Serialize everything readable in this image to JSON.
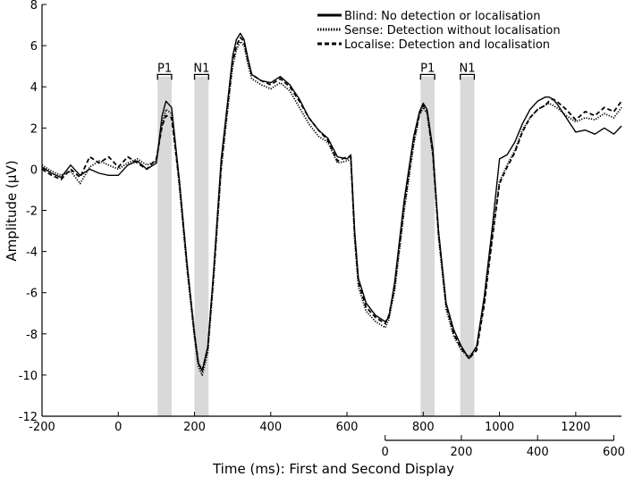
{
  "chart_data": {
    "type": "line",
    "xlabel": "Time (ms): First and Second Display",
    "ylabel": "Amplitude  (μV)",
    "xlim": [
      -200,
      1320
    ],
    "ylim": [
      -12,
      8
    ],
    "x_ticks": [
      -200,
      0,
      200,
      400,
      600,
      800,
      1000,
      1200
    ],
    "y_ticks": [
      8,
      6,
      4,
      2,
      0,
      -2,
      -4,
      -6,
      -8,
      -10,
      -12
    ],
    "second_axis": {
      "offset": 700,
      "ticks": [
        0,
        200,
        400,
        600
      ]
    },
    "shaded_regions": [
      {
        "label": "P1",
        "start": 103,
        "end": 140
      },
      {
        "label": "N1",
        "start": 200,
        "end": 237
      },
      {
        "label": "P1",
        "start": 793,
        "end": 830
      },
      {
        "label": "N1",
        "start": 897,
        "end": 934
      }
    ],
    "legend_position": "top-right",
    "series": [
      {
        "name": "Blind: No detection or localisation",
        "style": "solid",
        "x": [
          -200,
          -175,
          -150,
          -125,
          -100,
          -75,
          -50,
          -25,
          0,
          25,
          50,
          75,
          100,
          115,
          125,
          140,
          160,
          180,
          200,
          210,
          220,
          235,
          250,
          270,
          290,
          300,
          310,
          320,
          330,
          340,
          350,
          375,
          400,
          425,
          450,
          475,
          500,
          525,
          550,
          575,
          600,
          610,
          620,
          630,
          650,
          675,
          700,
          710,
          725,
          750,
          775,
          790,
          800,
          810,
          825,
          840,
          860,
          880,
          900,
          920,
          940,
          960,
          980,
          1000,
          1020,
          1040,
          1060,
          1080,
          1100,
          1120,
          1130,
          1140,
          1150,
          1175,
          1200,
          1225,
          1250,
          1275,
          1300,
          1320
        ],
        "y": [
          0.1,
          -0.2,
          -0.4,
          0.2,
          -0.3,
          0.0,
          -0.2,
          -0.3,
          -0.3,
          0.2,
          0.4,
          0.0,
          0.3,
          2.6,
          3.3,
          3.0,
          -0.5,
          -4.5,
          -8.0,
          -9.4,
          -9.8,
          -8.6,
          -5.0,
          0.5,
          3.8,
          5.5,
          6.3,
          6.6,
          6.3,
          5.4,
          4.6,
          4.3,
          4.2,
          4.5,
          4.1,
          3.4,
          2.5,
          1.9,
          1.5,
          0.6,
          0.5,
          0.7,
          -3.0,
          -5.3,
          -6.5,
          -7.1,
          -7.4,
          -7.2,
          -5.5,
          -1.5,
          1.6,
          2.8,
          3.2,
          2.9,
          1.0,
          -3.0,
          -6.5,
          -7.8,
          -8.6,
          -9.2,
          -8.6,
          -6.2,
          -3.0,
          0.5,
          0.7,
          1.3,
          2.2,
          2.9,
          3.3,
          3.5,
          3.5,
          3.4,
          3.2,
          2.5,
          1.8,
          1.9,
          1.7,
          2.0,
          1.7,
          2.1
        ]
      },
      {
        "name": "Sense: Detection without localisation",
        "style": "dotted",
        "x": [
          -200,
          -175,
          -150,
          -125,
          -100,
          -75,
          -50,
          -25,
          0,
          25,
          50,
          75,
          100,
          115,
          125,
          140,
          160,
          180,
          200,
          210,
          220,
          235,
          250,
          270,
          290,
          300,
          310,
          320,
          330,
          340,
          350,
          375,
          400,
          425,
          450,
          475,
          500,
          525,
          550,
          575,
          600,
          610,
          620,
          630,
          650,
          675,
          700,
          710,
          725,
          750,
          775,
          790,
          800,
          810,
          825,
          840,
          860,
          880,
          900,
          920,
          940,
          960,
          980,
          1000,
          1020,
          1040,
          1060,
          1080,
          1100,
          1120,
          1130,
          1140,
          1150,
          1175,
          1200,
          1225,
          1250,
          1275,
          1300,
          1320
        ],
        "y": [
          0.2,
          -0.1,
          -0.3,
          -0.1,
          -0.7,
          0.1,
          0.4,
          0.2,
          0.0,
          0.3,
          0.5,
          0.2,
          0.4,
          2.2,
          2.9,
          2.7,
          -0.8,
          -4.8,
          -8.2,
          -9.6,
          -10.0,
          -8.9,
          -5.4,
          0.0,
          3.4,
          5.0,
          5.8,
          6.2,
          6.0,
          5.1,
          4.4,
          4.1,
          3.9,
          4.2,
          3.8,
          3.0,
          2.2,
          1.6,
          1.3,
          0.3,
          0.4,
          0.5,
          -3.4,
          -5.7,
          -6.9,
          -7.4,
          -7.7,
          -7.3,
          -5.9,
          -2.0,
          1.2,
          2.6,
          3.0,
          2.7,
          0.7,
          -3.3,
          -6.8,
          -8.1,
          -8.8,
          -9.1,
          -8.7,
          -6.5,
          -3.4,
          -0.6,
          0.2,
          0.9,
          1.9,
          2.5,
          2.9,
          3.1,
          3.2,
          3.1,
          3.0,
          2.6,
          2.3,
          2.5,
          2.4,
          2.7,
          2.5,
          3.0
        ]
      },
      {
        "name": "Localise: Detection and localisation",
        "style": "dashed",
        "x": [
          -200,
          -175,
          -150,
          -125,
          -100,
          -75,
          -50,
          -25,
          0,
          25,
          50,
          75,
          100,
          115,
          125,
          140,
          160,
          180,
          200,
          210,
          220,
          235,
          250,
          270,
          290,
          300,
          310,
          320,
          330,
          340,
          350,
          375,
          400,
          425,
          450,
          475,
          500,
          525,
          550,
          575,
          600,
          610,
          620,
          630,
          650,
          675,
          700,
          710,
          725,
          750,
          775,
          790,
          800,
          810,
          825,
          840,
          860,
          880,
          900,
          920,
          940,
          960,
          980,
          1000,
          1020,
          1040,
          1060,
          1080,
          1100,
          1120,
          1130,
          1140,
          1150,
          1175,
          1200,
          1225,
          1250,
          1275,
          1300,
          1320
        ],
        "y": [
          0.0,
          -0.3,
          -0.5,
          0.0,
          -0.4,
          0.6,
          0.3,
          0.6,
          0.1,
          0.6,
          0.3,
          0.0,
          0.5,
          2.1,
          2.6,
          2.5,
          -0.6,
          -4.6,
          -8.0,
          -9.4,
          -9.8,
          -8.7,
          -5.2,
          0.2,
          3.6,
          5.2,
          6.0,
          6.4,
          6.2,
          5.3,
          4.6,
          4.3,
          4.1,
          4.4,
          4.0,
          3.3,
          2.5,
          1.9,
          1.4,
          0.4,
          0.6,
          0.6,
          -3.2,
          -5.5,
          -6.7,
          -7.2,
          -7.5,
          -7.1,
          -5.7,
          -1.8,
          1.4,
          2.7,
          3.1,
          2.8,
          0.8,
          -3.1,
          -6.6,
          -8.0,
          -8.7,
          -9.2,
          -8.8,
          -6.6,
          -3.5,
          -0.7,
          0.1,
          0.8,
          1.8,
          2.5,
          2.9,
          3.1,
          3.3,
          3.4,
          3.3,
          2.9,
          2.4,
          2.8,
          2.6,
          3.0,
          2.8,
          3.3
        ]
      }
    ]
  }
}
